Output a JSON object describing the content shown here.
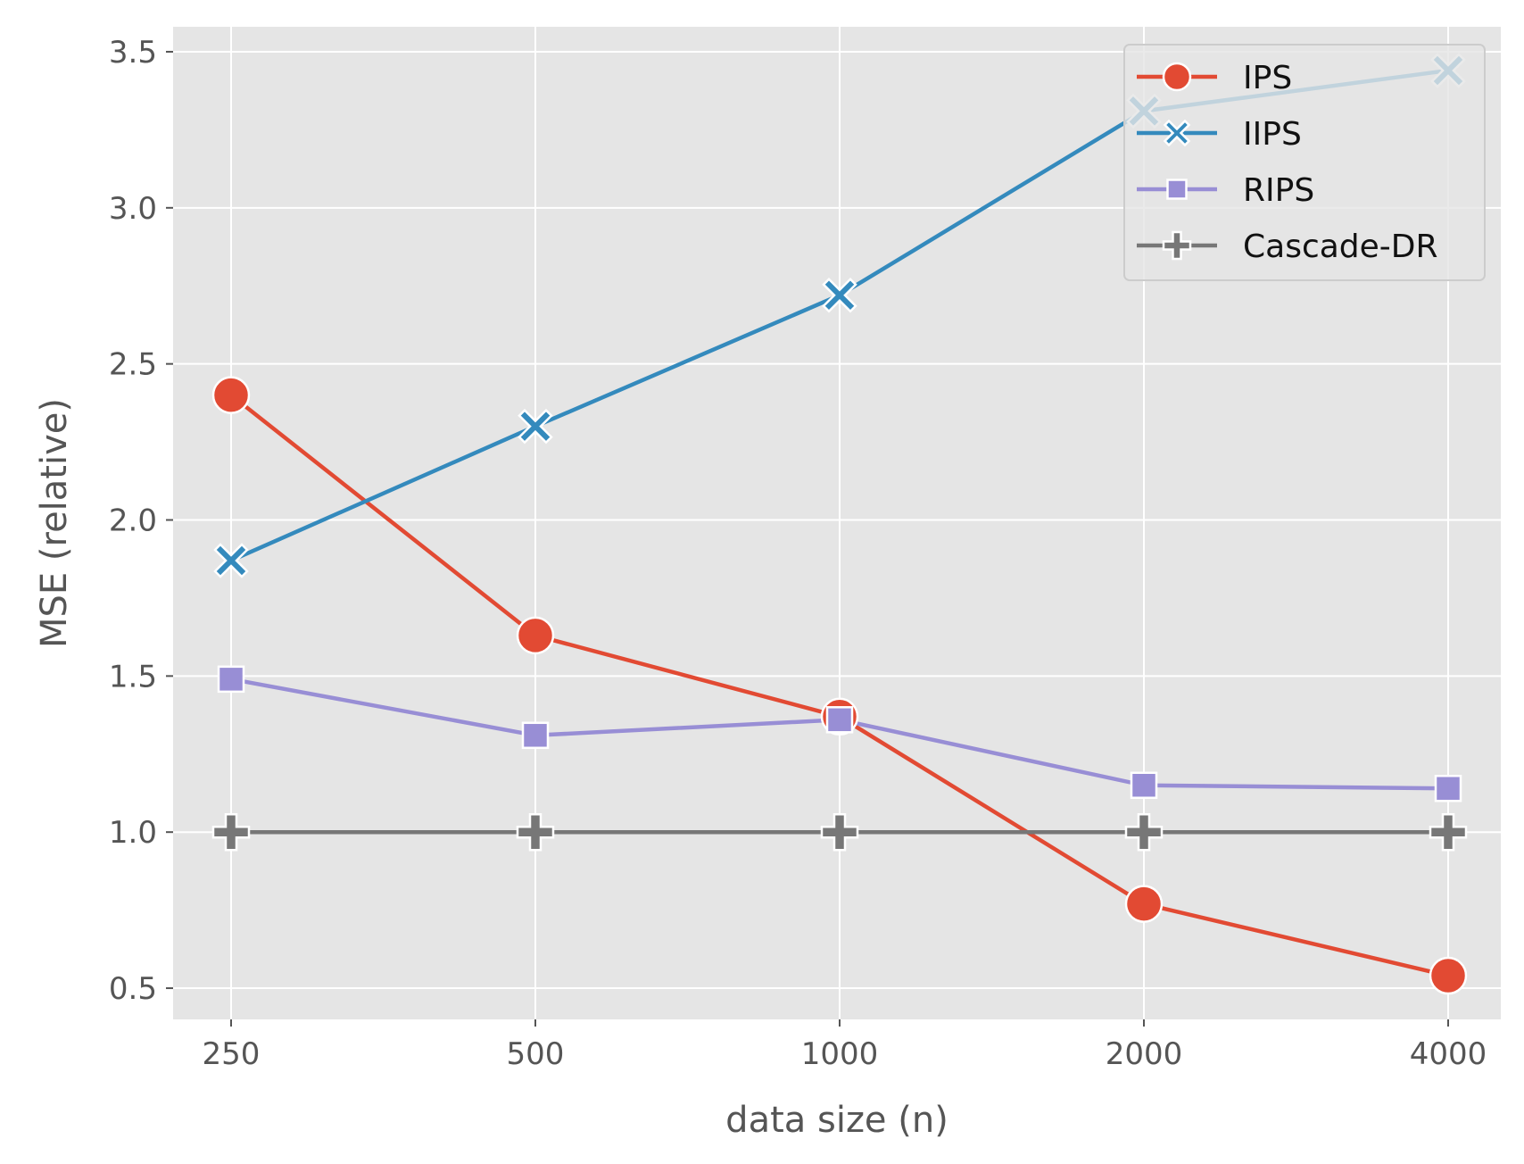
{
  "chart_data": {
    "type": "line",
    "title": "",
    "xlabel": "data size (n)",
    "ylabel": "MSE (relative)",
    "categories": [
      "250",
      "500",
      "1000",
      "2000",
      "4000"
    ],
    "yticks": [
      "0.5",
      "1.0",
      "1.5",
      "2.0",
      "2.5",
      "3.0",
      "3.5"
    ],
    "ylim": [
      0.4,
      3.58
    ],
    "grid": true,
    "legend_position": "top-right",
    "series": [
      {
        "name": "IPS",
        "color": "#E24A33",
        "marker": "circle",
        "values": [
          2.4,
          1.63,
          1.37,
          0.77,
          0.54
        ]
      },
      {
        "name": "IIPS",
        "color": "#348ABD",
        "marker": "x",
        "values": [
          1.87,
          2.3,
          2.72,
          3.31,
          3.44
        ]
      },
      {
        "name": "RIPS",
        "color": "#988ED5",
        "marker": "square",
        "values": [
          1.49,
          1.31,
          1.36,
          1.15,
          1.14
        ]
      },
      {
        "name": "Cascade-DR",
        "color": "#777777",
        "marker": "plus",
        "values": [
          1.0,
          1.0,
          1.0,
          1.0,
          1.0
        ]
      }
    ]
  }
}
